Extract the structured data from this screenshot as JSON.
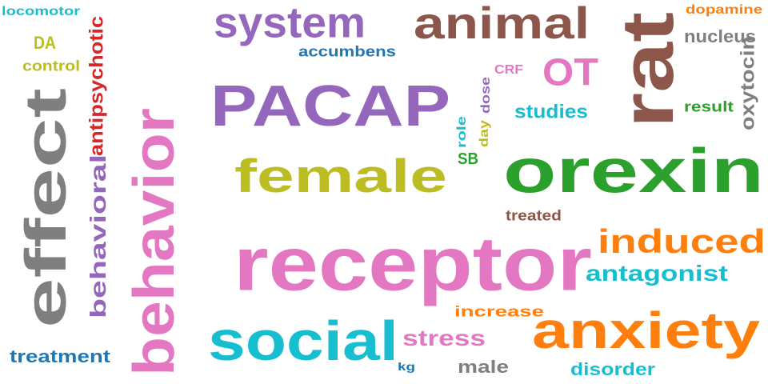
{
  "words": [
    {
      "text": "PACAP",
      "color": "#9467bd"
    },
    {
      "text": "receptor",
      "color": "#e377c2"
    },
    {
      "text": "orexin",
      "color": "#2ca02c"
    },
    {
      "text": "behavior",
      "color": "#e377c2"
    },
    {
      "text": "effect",
      "color": "#7f7f7f"
    },
    {
      "text": "anxiety",
      "color": "#ff7f0e"
    },
    {
      "text": "social",
      "color": "#17becf"
    },
    {
      "text": "female",
      "color": "#bcbd22"
    },
    {
      "text": "rat",
      "color": "#8c564b"
    },
    {
      "text": "animal",
      "color": "#8c564b"
    },
    {
      "text": "system",
      "color": "#9467bd"
    },
    {
      "text": "induced",
      "color": "#ff7f0e"
    },
    {
      "text": "OT",
      "color": "#e377c2"
    },
    {
      "text": "behavioral",
      "color": "#9467bd"
    },
    {
      "text": "antagonist",
      "color": "#17becf"
    },
    {
      "text": "stress",
      "color": "#e377c2"
    },
    {
      "text": "antipsychotic",
      "color": "#d62728"
    },
    {
      "text": "oxytocin",
      "color": "#7f7f7f"
    },
    {
      "text": "studies",
      "color": "#17becf"
    },
    {
      "text": "disorder",
      "color": "#17becf"
    },
    {
      "text": "treatment",
      "color": "#1f77b4"
    },
    {
      "text": "male",
      "color": "#7f7f7f"
    },
    {
      "text": "nucleus",
      "color": "#7f7f7f"
    },
    {
      "text": "accumbens",
      "color": "#1f77b4"
    },
    {
      "text": "result",
      "color": "#2ca02c"
    },
    {
      "text": "dopamine",
      "color": "#ff7f0e"
    },
    {
      "text": "increase",
      "color": "#ff7f0e"
    },
    {
      "text": "treated",
      "color": "#8c564b"
    },
    {
      "text": "locomotor",
      "color": "#17becf"
    },
    {
      "text": "control",
      "color": "#bcbd22"
    },
    {
      "text": "DA",
      "color": "#bcbd22"
    },
    {
      "text": "SB",
      "color": "#2ca02c"
    },
    {
      "text": "dose",
      "color": "#9467bd"
    },
    {
      "text": "role",
      "color": "#17becf"
    },
    {
      "text": "day",
      "color": "#bcbd22"
    },
    {
      "text": "CRF",
      "color": "#e377c2"
    },
    {
      "text": "kg",
      "color": "#1f77b4"
    }
  ]
}
